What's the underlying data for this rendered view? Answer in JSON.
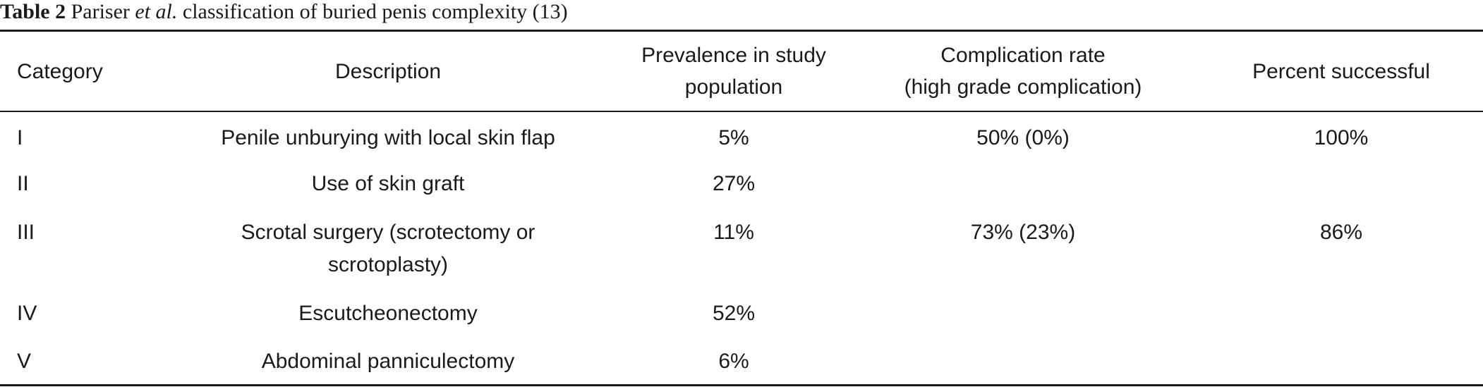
{
  "caption": {
    "label": "Table 2",
    "text_before": " Pariser ",
    "italic": "et al.",
    "text_after": " classification of buried penis complexity (13)"
  },
  "table": {
    "headers": {
      "category": "Category",
      "description": "Description",
      "prevalence": [
        "Prevalence in study",
        "population"
      ],
      "complication": [
        "Complication rate",
        "(high grade complication)"
      ],
      "success": "Percent successful"
    },
    "rows": [
      {
        "category": "I",
        "description": "Penile unburying with local skin flap",
        "prevalence": "5%",
        "complication": "50% (0%)",
        "success": "100%"
      },
      {
        "category": "II",
        "description": "Use of skin graft",
        "prevalence": "27%",
        "complication": "",
        "success": ""
      },
      {
        "category": "III",
        "description": [
          "Scrotal surgery (scrotectomy or",
          "scrotoplasty)"
        ],
        "prevalence": "11%",
        "complication": "73% (23%)",
        "success": "86%"
      },
      {
        "category": "IV",
        "description": "Escutcheonectomy",
        "prevalence": "52%",
        "complication": "",
        "success": ""
      },
      {
        "category": "V",
        "description": "Abdominal panniculectomy",
        "prevalence": "6%",
        "complication": "",
        "success": ""
      }
    ]
  }
}
